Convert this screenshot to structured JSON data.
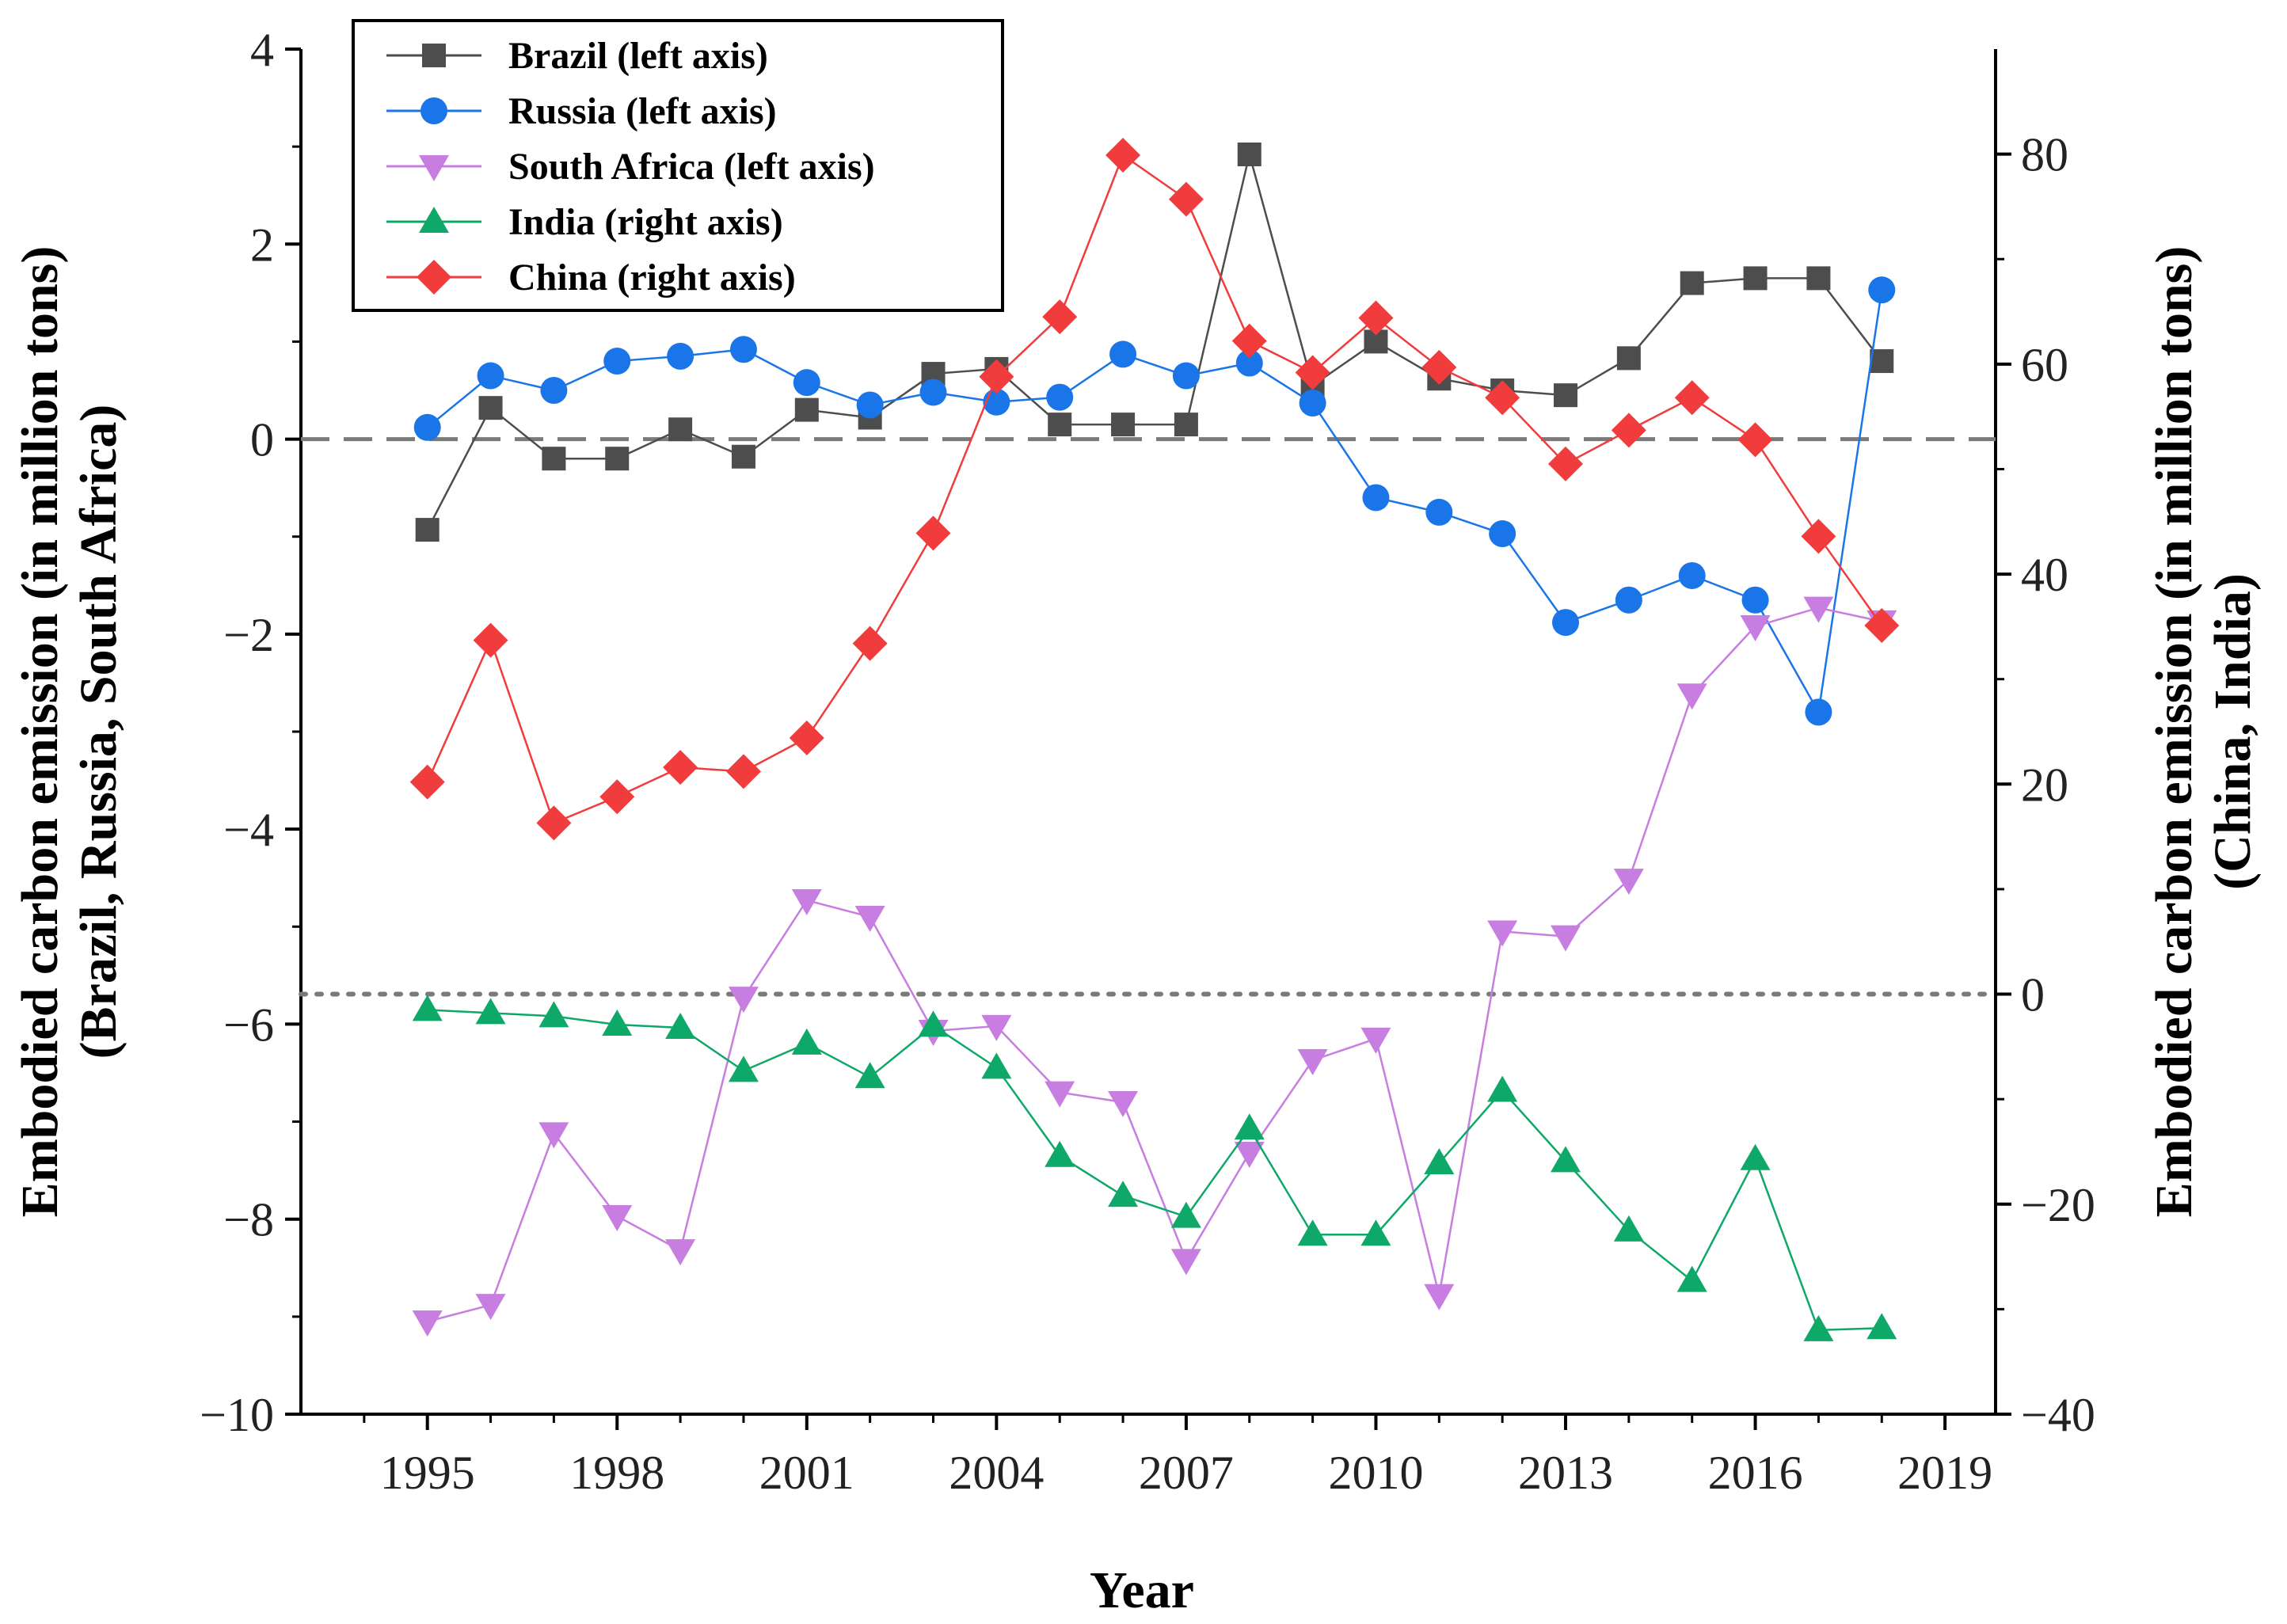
{
  "chart_data": {
    "type": "line",
    "xlabel": "Year",
    "ylabel_left": "Embodied carbon emission (in million tons)",
    "ylabel_left_sub": "(Brazil, Russia, South Africa)",
    "ylabel_right": "Embodied carbon emission (in million tons)",
    "ylabel_right_sub": "(China, India)",
    "xlim": [
      1993,
      2019.8
    ],
    "x_ticks": [
      1995,
      1998,
      2001,
      2004,
      2007,
      2010,
      2013,
      2016,
      2019
    ],
    "x_tick_labels": [
      "1995",
      "1998",
      "2001",
      "2004",
      "2007",
      "2010",
      "2013",
      "2016",
      "2019"
    ],
    "ylim_left": [
      -10,
      4
    ],
    "y_ticks_left": [
      4,
      2,
      0,
      -2,
      -4,
      -6,
      -8,
      -10
    ],
    "y_tick_labels_left": [
      "4",
      "2",
      "0",
      "−2",
      "−4",
      "−6",
      "−8",
      "−10"
    ],
    "ylim_right": [
      -40,
      90
    ],
    "y_ticks_right": [
      80,
      60,
      40,
      20,
      0,
      -20,
      -40
    ],
    "y_tick_labels_right": [
      "80",
      "60",
      "40",
      "20",
      "0",
      "−20",
      "−40"
    ],
    "reference_lines": [
      {
        "axis": "left",
        "value": 0,
        "style": "dashed"
      },
      {
        "axis": "right",
        "value": 0,
        "style": "dotted"
      }
    ],
    "legend_position": "top-left",
    "years": [
      1995,
      1996,
      1997,
      1998,
      1999,
      2000,
      2001,
      2002,
      2003,
      2004,
      2005,
      2006,
      2007,
      2008,
      2009,
      2010,
      2011,
      2012,
      2013,
      2014,
      2015,
      2016,
      2017,
      2018
    ],
    "series": [
      {
        "name": "Brazil (left axis)",
        "axis": "left",
        "color": "#4d4d4d",
        "marker": "square",
        "values": [
          -0.93,
          0.32,
          -0.2,
          -0.2,
          0.1,
          -0.18,
          0.3,
          0.22,
          0.67,
          0.72,
          0.15,
          0.15,
          0.15,
          2.92,
          0.55,
          1.0,
          0.62,
          0.5,
          0.45,
          0.83,
          1.6,
          1.65,
          1.65,
          0.8
        ]
      },
      {
        "name": "Russia (left axis)",
        "axis": "left",
        "color": "#1a75e8",
        "marker": "circle",
        "values": [
          0.12,
          0.65,
          0.5,
          0.8,
          0.85,
          0.92,
          0.58,
          0.35,
          0.48,
          0.38,
          0.43,
          0.87,
          0.65,
          0.78,
          0.37,
          -0.6,
          -0.75,
          -0.97,
          -1.88,
          -1.65,
          -1.4,
          -1.65,
          -2.8,
          1.53
        ]
      },
      {
        "name": "South Africa (left axis)",
        "axis": "left",
        "color": "#c77ee0",
        "marker": "triangle-down",
        "values": [
          -9.05,
          -8.88,
          -7.12,
          -7.97,
          -8.32,
          -5.73,
          -4.73,
          -4.9,
          -6.07,
          -6.02,
          -6.7,
          -6.8,
          -8.42,
          -7.32,
          -6.37,
          -6.15,
          -8.78,
          -5.05,
          -5.1,
          -4.52,
          -2.62,
          -1.92,
          -1.73,
          -1.87
        ]
      },
      {
        "name": "India (right axis)",
        "axis": "right",
        "color": "#0ea868",
        "marker": "triangle-up",
        "values": [
          -1.5,
          -1.8,
          -2.1,
          -2.9,
          -3.2,
          -7.3,
          -4.7,
          -7.9,
          -3.0,
          -7.0,
          -15.4,
          -19.2,
          -21.2,
          -12.8,
          -22.9,
          -22.9,
          -16.1,
          -9.2,
          -15.9,
          -22.5,
          -27.3,
          -15.7,
          -32.0,
          -31.8
        ]
      },
      {
        "name": "China (right axis)",
        "axis": "right",
        "color": "#f03c3c",
        "marker": "diamond",
        "values": [
          20.2,
          33.7,
          16.3,
          18.8,
          21.6,
          21.2,
          24.4,
          33.4,
          43.9,
          58.8,
          64.5,
          79.9,
          75.7,
          62.2,
          59.2,
          64.4,
          59.7,
          56.8,
          50.5,
          53.7,
          56.8,
          52.8,
          43.6,
          35.1
        ]
      }
    ]
  }
}
